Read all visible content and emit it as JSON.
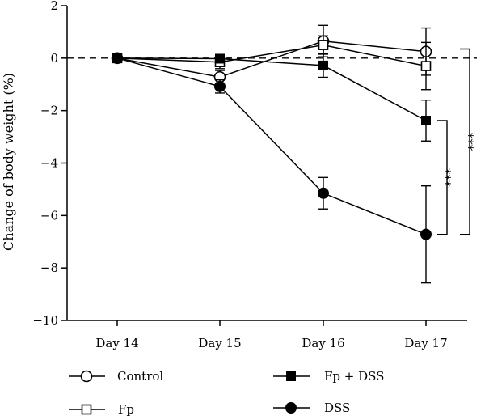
{
  "chart_data": {
    "type": "line",
    "categories": [
      "Day 14",
      "Day 15",
      "Day 16",
      "Day 17"
    ],
    "ylabel": "Change of body weight (%)",
    "xlabel": "",
    "ylim": [
      -10,
      2
    ],
    "yticks": [
      2,
      0,
      -2,
      -4,
      -6,
      -8,
      -10
    ],
    "ytick_labels": [
      "2",
      "0",
      "−2",
      "−4",
      "−6",
      "−8",
      "−10"
    ],
    "reference_line": {
      "y": 0,
      "style": "dashed"
    },
    "grid": false,
    "legend_position": "bottom",
    "series": [
      {
        "name": "Control",
        "marker": "open-circle",
        "values": [
          0,
          -0.72,
          0.65,
          0.25
        ],
        "errors": [
          0,
          0.25,
          0.6,
          0.9
        ]
      },
      {
        "name": "Fp",
        "marker": "open-square",
        "values": [
          0,
          -0.15,
          0.5,
          -0.3
        ],
        "errors": [
          0,
          0.25,
          0.35,
          0.9
        ]
      },
      {
        "name": "Fp + DSS",
        "marker": "filled-square",
        "values": [
          0,
          -0.02,
          -0.28,
          -2.38
        ],
        "errors": [
          0,
          0.1,
          0.45,
          0.78
        ]
      },
      {
        "name": "DSS",
        "marker": "filled-circle",
        "values": [
          0,
          -1.08,
          -5.15,
          -6.72
        ],
        "errors": [
          0,
          0.25,
          0.6,
          1.85
        ]
      }
    ],
    "significance": [
      {
        "label": "***",
        "from": -2.38,
        "to": -6.72
      },
      {
        "label": "***",
        "from": 0.35,
        "to": -6.72
      }
    ]
  }
}
